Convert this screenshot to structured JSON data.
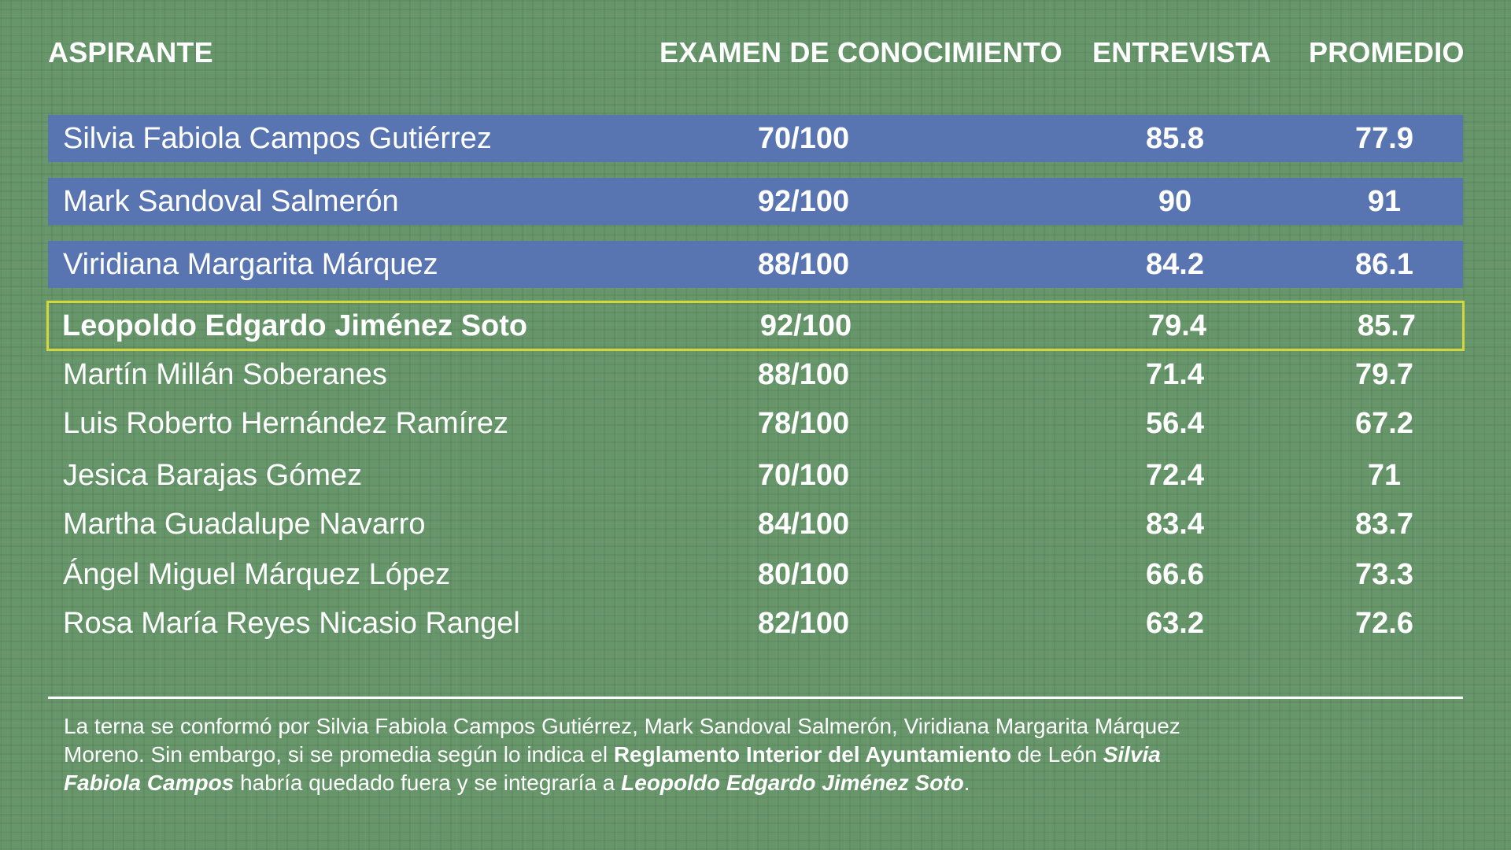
{
  "colors": {
    "background": "#66966a",
    "row_highlight_blue": "#5875b2",
    "selection_border": "#d5d63a",
    "text": "#ffffff"
  },
  "table": {
    "headers": {
      "name": "ASPIRANTE",
      "exam": "EXAMEN DE CONOCIMIENTO",
      "interview": "ENTREVISTA",
      "average": "PROMEDIO"
    },
    "rows": [
      {
        "name": "Silvia Fabiola Campos Gutiérrez",
        "exam": "70/100",
        "interview": "85.8",
        "average": "77.9",
        "style": "blue"
      },
      {
        "name": "Mark Sandoval Salmerón",
        "exam": "92/100",
        "interview": "90",
        "average": "91",
        "style": "blue"
      },
      {
        "name": "Viridiana Margarita Márquez",
        "exam": "88/100",
        "interview": "84.2",
        "average": "86.1",
        "style": "blue"
      },
      {
        "name": "Leopoldo Edgardo Jiménez Soto",
        "exam": "92/100",
        "interview": "79.4",
        "average": "85.7",
        "style": "highlight"
      },
      {
        "name": "Martín Millán Soberanes",
        "exam": "88/100",
        "interview": "71.4",
        "average": "79.7",
        "style": "plain"
      },
      {
        "name": "Luis Roberto Hernández Ramírez",
        "exam": "78/100",
        "interview": "56.4",
        "average": "67.2",
        "style": "plain"
      },
      {
        "name": "Jesica Barajas Gómez",
        "exam": "70/100",
        "interview": "72.4",
        "average": "71",
        "style": "plain"
      },
      {
        "name": "Martha Guadalupe Navarro",
        "exam": "84/100",
        "interview": "83.4",
        "average": "83.7",
        "style": "plain"
      },
      {
        "name": "Ángel Miguel Márquez López",
        "exam": "80/100",
        "interview": "66.6",
        "average": "73.3",
        "style": "plain"
      },
      {
        "name": "Rosa María Reyes Nicasio Rangel",
        "exam": "82/100",
        "interview": "63.2",
        "average": "72.6",
        "style": "plain"
      }
    ]
  },
  "note": {
    "part1": "La terna se conformó por Silvia Fabiola Campos Gutiérrez, Mark Sandoval Salmerón, Viridiana Margarita Márquez Moreno. Sin embargo, si se promedia según lo indica el ",
    "bold": "Reglamento Interior del Ayuntamiento",
    "part2": " de León ",
    "italic1": "Silvia Fabiola Campos",
    "part3": " habría quedado fuera y se integraría a ",
    "italic2": "Leopoldo Edgardo Jiménez Soto",
    "part4": "."
  }
}
